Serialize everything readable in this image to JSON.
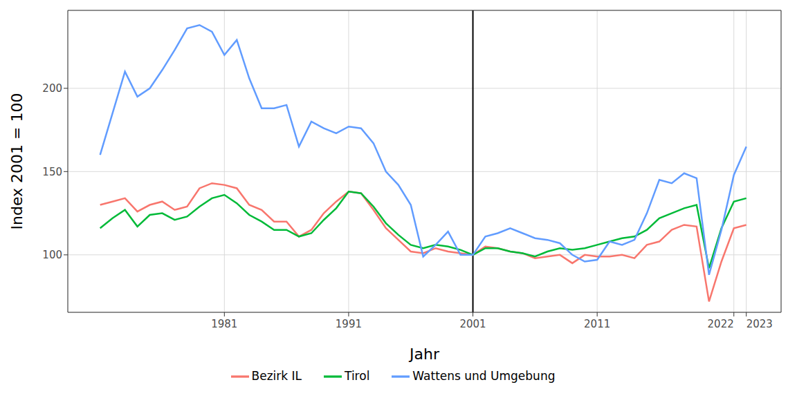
{
  "chart_data": {
    "type": "line",
    "x_label": "Jahr",
    "y_label": "Index 2001 = 100",
    "x": [
      1971,
      1972,
      1973,
      1974,
      1975,
      1976,
      1977,
      1978,
      1979,
      1980,
      1981,
      1982,
      1983,
      1984,
      1985,
      1986,
      1987,
      1988,
      1989,
      1990,
      1991,
      1992,
      1993,
      1994,
      1995,
      1996,
      1997,
      1998,
      1999,
      2000,
      2001,
      2002,
      2003,
      2004,
      2005,
      2006,
      2007,
      2008,
      2009,
      2010,
      2011,
      2012,
      2013,
      2014,
      2015,
      2016,
      2017,
      2018,
      2019,
      2020,
      2021,
      2022,
      2023
    ],
    "series": [
      {
        "name": "Bezirk IL",
        "color": "#f8766d",
        "values": [
          130,
          132,
          134,
          126,
          130,
          132,
          127,
          129,
          140,
          143,
          142,
          140,
          130,
          127,
          120,
          120,
          111,
          115,
          125,
          132,
          138,
          137,
          127,
          116,
          109,
          102,
          101,
          104,
          102,
          101,
          100,
          105,
          104,
          102,
          101,
          98,
          99,
          100,
          95,
          100,
          99,
          99,
          100,
          98,
          106,
          108,
          115,
          118,
          117,
          72,
          96,
          116,
          118
        ]
      },
      {
        "name": "Tirol",
        "color": "#00ba38",
        "values": [
          116,
          122,
          127,
          117,
          124,
          125,
          121,
          123,
          129,
          134,
          136,
          131,
          124,
          120,
          115,
          115,
          111,
          113,
          121,
          128,
          138,
          137,
          129,
          119,
          112,
          106,
          104,
          106,
          105,
          103,
          100,
          104,
          104,
          102,
          101,
          99,
          102,
          104,
          103,
          104,
          106,
          108,
          110,
          111,
          115,
          122,
          125,
          128,
          130,
          92,
          116,
          132,
          134
        ]
      },
      {
        "name": "Wattens und Umgebung",
        "color": "#619cff",
        "values": [
          160,
          185,
          210,
          195,
          200,
          211,
          223,
          236,
          238,
          234,
          220,
          229,
          206,
          188,
          188,
          190,
          165,
          180,
          176,
          173,
          177,
          176,
          167,
          150,
          142,
          130,
          99,
          106,
          114,
          100,
          100,
          111,
          113,
          116,
          113,
          110,
          109,
          107,
          100,
          96,
          97,
          108,
          106,
          109,
          125,
          145,
          143,
          149,
          146,
          88,
          115,
          148,
          165
        ]
      }
    ],
    "xlim": [
      1968.4,
      2025.8
    ],
    "xticks": [
      1981,
      1991,
      2001,
      2011,
      2022,
      2023
    ],
    "ylim": [
      65.5,
      246.8
    ],
    "yticks": [
      100,
      150,
      200
    ],
    "vlines": [
      2001
    ],
    "grid": true,
    "legend": "bottom"
  }
}
